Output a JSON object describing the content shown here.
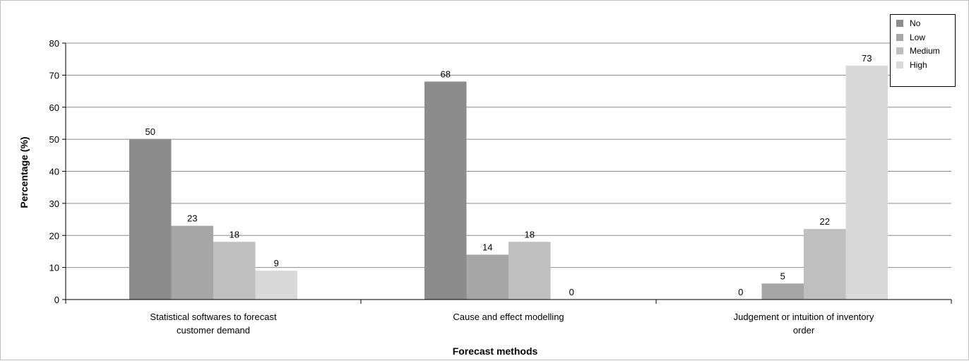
{
  "chart_data": {
    "type": "bar",
    "title": "",
    "xlabel": "Forecast methods",
    "ylabel": "Percentage (%)",
    "ylim": [
      0,
      80
    ],
    "yticks": [
      0,
      10,
      20,
      30,
      40,
      50,
      60,
      70,
      80
    ],
    "grid": true,
    "legend_position": "top-right",
    "categories": [
      [
        "Statistical softwares to forecast",
        "customer demand"
      ],
      [
        "Cause and effect modelling"
      ],
      [
        "Judgement or intuition of inventory",
        "order"
      ]
    ],
    "series": [
      {
        "name": "No",
        "color": "#8c8c8c",
        "values": [
          50,
          68,
          0
        ]
      },
      {
        "name": "Low",
        "color": "#a6a6a6",
        "values": [
          23,
          14,
          5
        ]
      },
      {
        "name": "Medium",
        "color": "#bfbfbf",
        "values": [
          18,
          18,
          22
        ]
      },
      {
        "name": "High",
        "color": "#d9d9d9",
        "values": [
          9,
          0,
          73
        ]
      }
    ]
  }
}
